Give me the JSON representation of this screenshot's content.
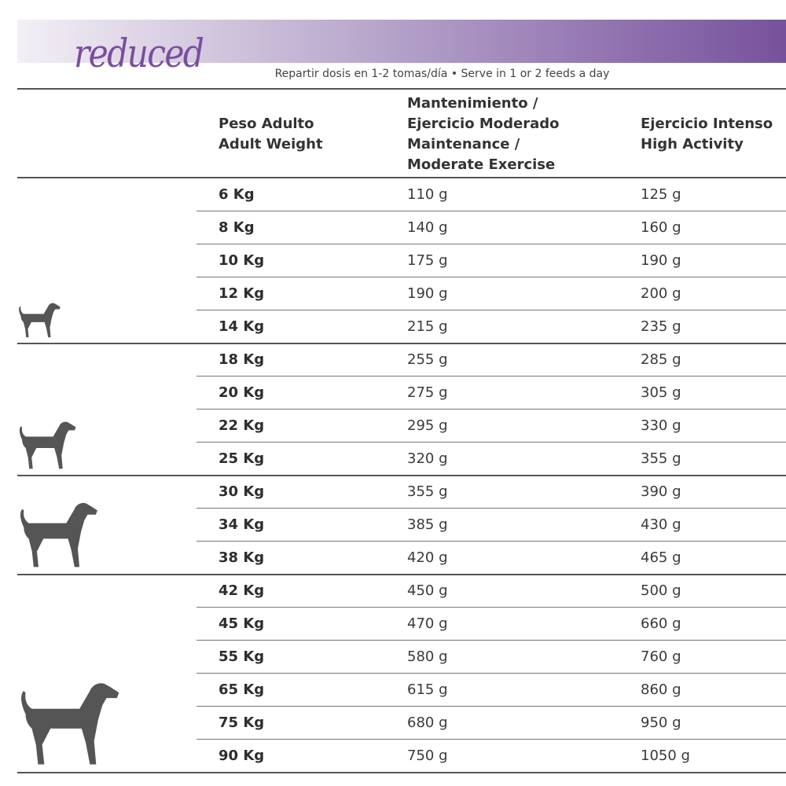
{
  "brand": {
    "logo_text": "reduced",
    "accent": "#7b4d9e"
  },
  "subtitle": "Repartir dosis en 1-2 tomas/día • Serve in 1 or 2 feeds a day",
  "headers": {
    "weight": [
      "Peso Adulto",
      "Adult Weight"
    ],
    "maintenance": [
      "Mantenimiento /",
      "Ejercicio Moderado",
      "Maintenance /",
      "Moderate Exercise"
    ],
    "high": [
      "Ejercicio Intenso",
      "High Activity"
    ]
  },
  "groups": [
    {
      "icon": "small-dog-icon",
      "rows": 5
    },
    {
      "icon": "medium-dog-icon",
      "rows": 4
    },
    {
      "icon": "large-dog-icon",
      "rows": 3
    },
    {
      "icon": "giant-dog-icon",
      "rows": 6
    }
  ],
  "rows": [
    {
      "weight": "6 Kg",
      "maintenance": "110 g",
      "high": "125 g"
    },
    {
      "weight": "8 Kg",
      "maintenance": "140 g",
      "high": "160 g"
    },
    {
      "weight": "10 Kg",
      "maintenance": "175 g",
      "high": "190 g"
    },
    {
      "weight": "12 Kg",
      "maintenance": "190 g",
      "high": "200 g"
    },
    {
      "weight": "14 Kg",
      "maintenance": "215 g",
      "high": "235 g"
    },
    {
      "weight": "18 Kg",
      "maintenance": "255 g",
      "high": "285 g"
    },
    {
      "weight": "20 Kg",
      "maintenance": "275 g",
      "high": "305 g"
    },
    {
      "weight": "22 Kg",
      "maintenance": "295 g",
      "high": "330 g"
    },
    {
      "weight": "25 Kg",
      "maintenance": "320 g",
      "high": "355 g"
    },
    {
      "weight": "30 Kg",
      "maintenance": "355 g",
      "high": "390 g"
    },
    {
      "weight": "34 Kg",
      "maintenance": "385 g",
      "high": "430 g"
    },
    {
      "weight": "38 Kg",
      "maintenance": "420 g",
      "high": "465 g"
    },
    {
      "weight": "42 Kg",
      "maintenance": "450 g",
      "high": "500 g"
    },
    {
      "weight": "45 Kg",
      "maintenance": "470 g",
      "high": "660 g"
    },
    {
      "weight": "55 Kg",
      "maintenance": "580 g",
      "high": "760 g"
    },
    {
      "weight": "65 Kg",
      "maintenance": "615 g",
      "high": "860 g"
    },
    {
      "weight": "75 Kg",
      "maintenance": "680 g",
      "high": "950 g"
    },
    {
      "weight": "90 Kg",
      "maintenance": "750 g",
      "high": "1050 g"
    }
  ]
}
